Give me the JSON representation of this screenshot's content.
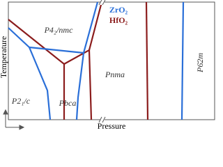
{
  "legend": {
    "zro2": "ZrO₂",
    "hfo2": "HfO₂"
  },
  "phases": {
    "tetragonal": "P4₂/nmc",
    "monoclinic": "P2₁/c",
    "orthorhombic_pbca": "Pbca",
    "orthorhombic_pnma": "Pnma",
    "hexagonal": "P6̄2m"
  },
  "axes": {
    "y_label": "Temperature",
    "x_label": "Pressure"
  }
}
